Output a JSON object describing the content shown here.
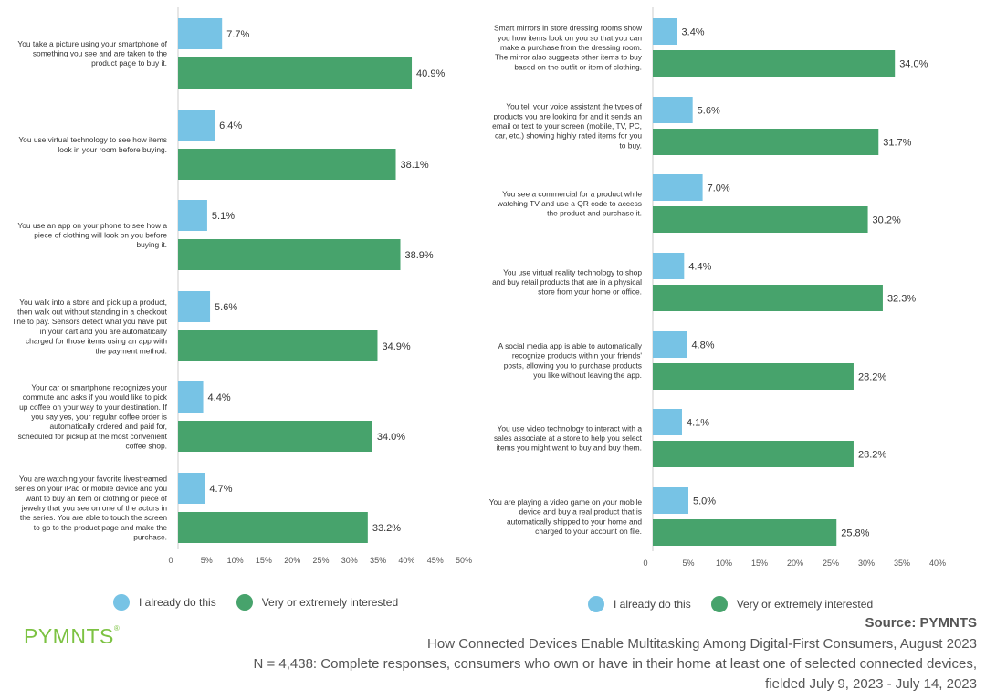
{
  "colors": {
    "series1": "#77c3e5",
    "series2": "#47a36c",
    "axis": "#cccccc"
  },
  "chart_data": [
    {
      "type": "bar",
      "orientation": "horizontal",
      "xlim": [
        0,
        50
      ],
      "ticks": [
        "0",
        "5%",
        "10%",
        "15%",
        "20%",
        "25%",
        "30%",
        "35%",
        "40%",
        "45%",
        "50%"
      ],
      "categories": [
        [
          "You take a picture using your smartphone of",
          "something you see and are taken to the",
          "product page to buy it."
        ],
        [
          "You use virtual technology to see how items",
          "look in your room before buying."
        ],
        [
          "You use an app on your phone to see how a",
          "piece of clothing will look on you before",
          "buying it."
        ],
        [
          "You walk into a store and pick up a product,",
          "then walk out without standing in a checkout",
          "line to pay. Sensors detect what you have put",
          "in your cart and you are automatically",
          "charged for those items using an app with",
          "the payment method."
        ],
        [
          "Your car or smartphone recognizes your",
          "commute and asks if you would like to pick",
          "up coffee on your way to your destination. If",
          "you say yes, your regular coffee order is",
          "automatically ordered and paid for,",
          "scheduled for pickup at the most convenient",
          "coffee shop."
        ],
        [
          "You are watching your favorite livestreamed",
          "series on your iPad or mobile device and you",
          "want to buy an item or clothing or piece of",
          "jewelry that you see on one of the actors in",
          "the series. You are able to touch the screen",
          "to go to the product page and make the",
          "purchase."
        ]
      ],
      "series": [
        {
          "name": "I already do this",
          "values": [
            7.7,
            6.4,
            5.1,
            5.6,
            4.4,
            4.7
          ],
          "labels": [
            "7.7%",
            "6.4%",
            "5.1%",
            "5.6%",
            "4.4%",
            "4.7%"
          ]
        },
        {
          "name": "Very or extremely interested",
          "values": [
            40.9,
            38.1,
            38.9,
            34.9,
            34.0,
            33.2
          ],
          "labels": [
            "40.9%",
            "38.1%",
            "38.9%",
            "34.9%",
            "34.0%",
            "33.2%"
          ]
        }
      ]
    },
    {
      "type": "bar",
      "orientation": "horizontal",
      "xlim": [
        0,
        40
      ],
      "ticks": [
        "0",
        "5%",
        "10%",
        "15%",
        "20%",
        "25%",
        "30%",
        "35%",
        "40%"
      ],
      "categories": [
        [
          "Smart mirrors in store dressing rooms show",
          "you how items look on you so that you can",
          "make a purchase from the dressing room.",
          "The mirror also suggests other items to buy",
          "based on the outfit or item of clothing."
        ],
        [
          "You tell your voice assistant the types of",
          "products you are looking for and it sends an",
          "email or text to your screen (mobile, TV, PC,",
          "car, etc.) showing highly rated items for you",
          "to buy."
        ],
        [
          "You see a commercial for a product while",
          "watching TV and use a QR code to access",
          "the product and purchase it."
        ],
        [
          "You use virtual reality technology to shop",
          "and buy retail products that are in a physical",
          "store from your home or office."
        ],
        [
          "A social media app is able to automatically",
          "recognize products within your friends'",
          "posts, allowing you to purchase products",
          "you like without leaving the app."
        ],
        [
          "You use video technology to interact with a",
          "sales associate at a store to help you select",
          "items you might want to buy and buy them."
        ],
        [
          "You are playing a video game on your mobile",
          "device and buy a real product that is",
          "automatically shipped to your home and",
          "charged to your account on file."
        ]
      ],
      "series": [
        {
          "name": "I already do this",
          "values": [
            3.4,
            5.6,
            7.0,
            4.4,
            4.8,
            4.1,
            5.0
          ],
          "labels": [
            "3.4%",
            "5.6%",
            "7.0%",
            "4.4%",
            "4.8%",
            "4.1%",
            "5.0%"
          ]
        },
        {
          "name": "Very or extremely interested",
          "values": [
            34.0,
            31.7,
            30.2,
            32.3,
            28.2,
            28.2,
            25.8
          ],
          "labels": [
            "34.0%",
            "31.7%",
            "30.2%",
            "32.3%",
            "28.2%",
            "28.2%",
            "25.8%"
          ]
        }
      ]
    }
  ],
  "legend": {
    "already": "I already do this",
    "interested": "Very or extremely interested"
  },
  "logo": "PYMNTS",
  "footer": {
    "source": "Source: PYMNTS",
    "subtitle": "How Connected Devices Enable Multitasking Among Digital-First Consumers, August 2023",
    "note_line1": "N = 4,438: Complete responses, consumers who own or have in their home at least one of selected connected devices,",
    "note_line2": "fielded July 9, 2023 - July 14, 2023"
  }
}
